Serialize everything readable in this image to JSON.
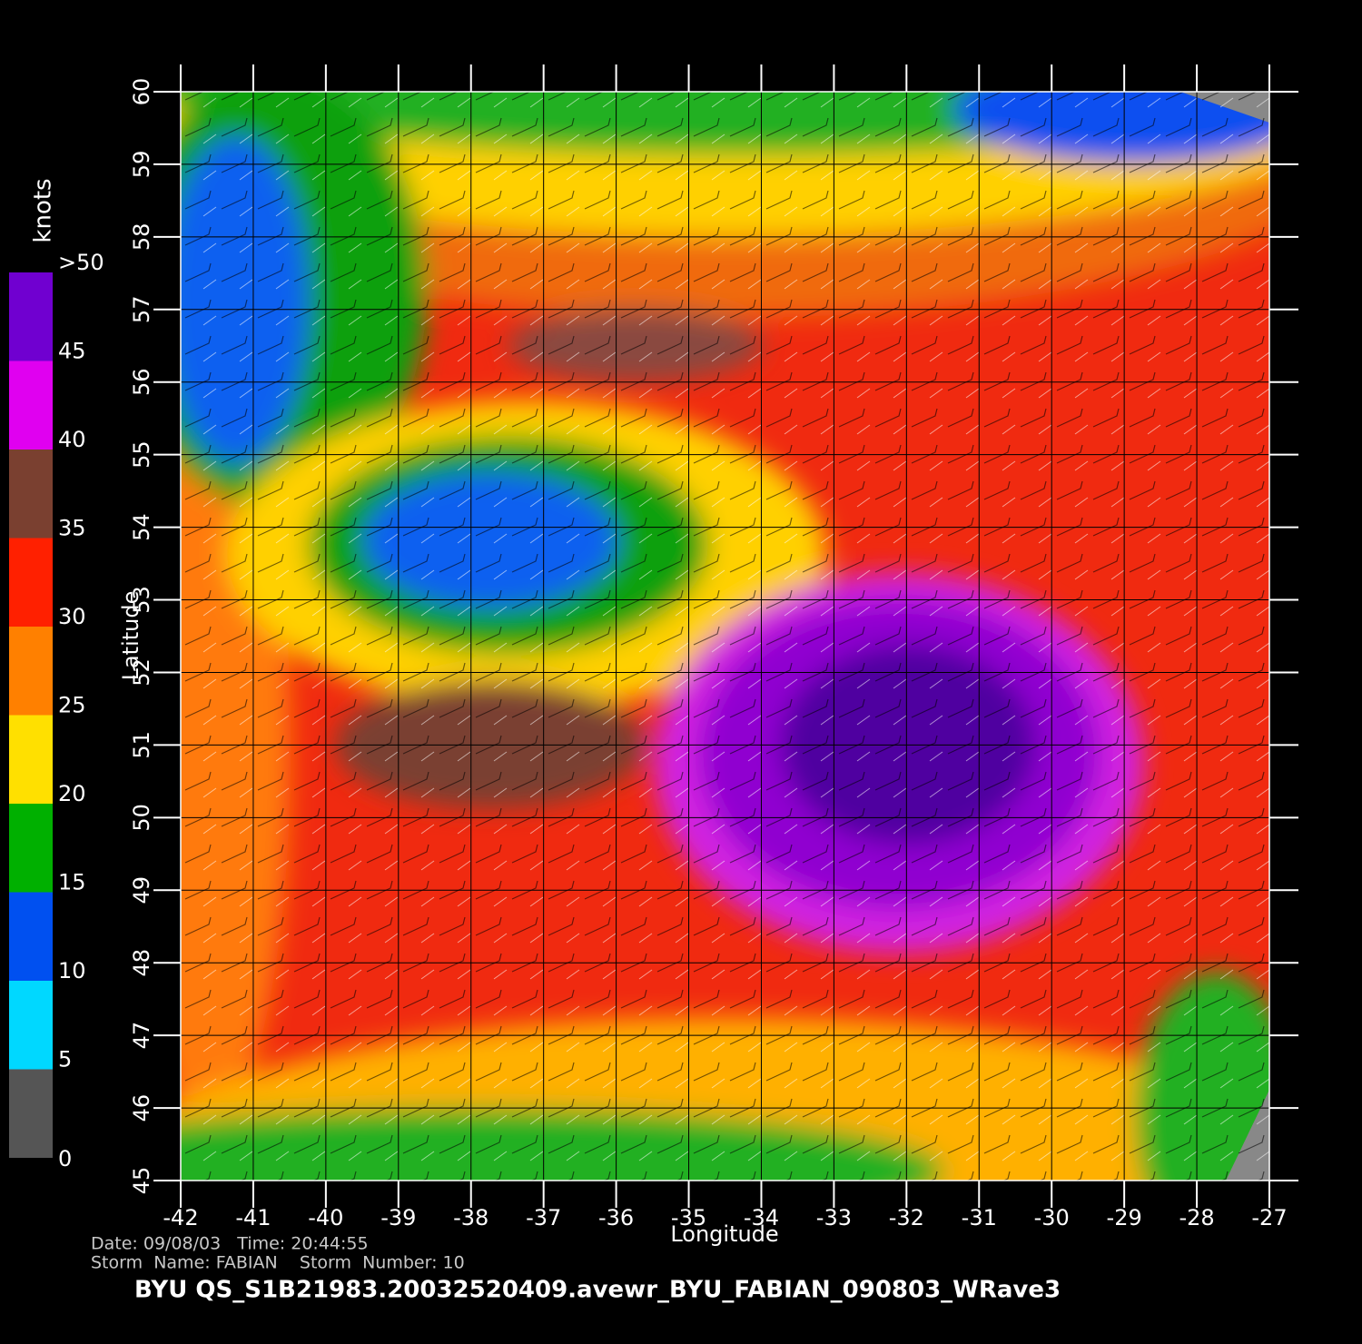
{
  "chart_data": {
    "type": "heatmap",
    "xlabel": "Longitude",
    "ylabel": "Latitude",
    "xlim": [
      -42,
      -27
    ],
    "ylim": [
      45,
      60
    ],
    "xticks": [
      -42,
      -41,
      -40,
      -39,
      -38,
      -37,
      -36,
      -35,
      -34,
      -33,
      -32,
      -31,
      -30,
      -29,
      -28,
      -27
    ],
    "yticks": [
      45,
      46,
      47,
      48,
      49,
      50,
      51,
      52,
      53,
      54,
      55,
      56,
      57,
      58,
      59,
      60
    ],
    "grid": true,
    "colorbar": {
      "title": "knots",
      "clim": [
        0,
        50
      ],
      "ticks": [
        0,
        5,
        10,
        15,
        20,
        25,
        30,
        35,
        40,
        45,
        {
          "value": 50,
          "label": ">50"
        }
      ],
      "colors": [
        "#555555",
        "#00d8ff",
        "#0050f0",
        "#00b000",
        "#ffe000",
        "#ff8000",
        "#ff2000",
        "#7a4030",
        "#e000f0",
        "#7000d0"
      ]
    }
  },
  "footer": [
    "Date: 09/08/03   Time: 20:44:55",
    "Storm  Name: FABIAN    Storm  Number: 10",
    "BYU  QS_S1B21983.20032520409.avewr_BYU_FABIAN_090803_WRave3"
  ]
}
